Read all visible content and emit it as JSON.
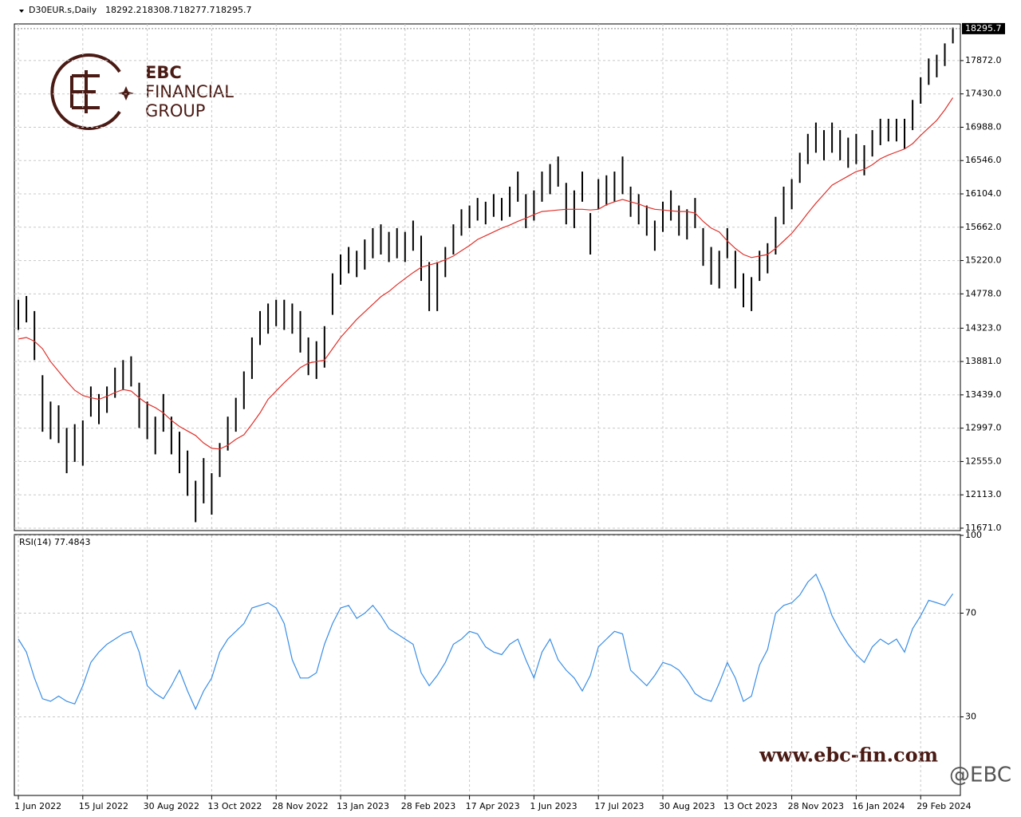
{
  "chart_data": [
    {
      "type": "ohlc",
      "title": "D30EUR.s,Daily",
      "ohlc_values": [
        18292.2,
        18308.7,
        18277.7,
        18295.7
      ],
      "last_price": 18295.7,
      "ylim": [
        11639,
        18358
      ],
      "yticks": [
        {
          "value": 11671,
          "label": "11671.0"
        },
        {
          "value": 12113,
          "label": "12113.0"
        },
        {
          "value": 12555,
          "label": "12555.0"
        },
        {
          "value": 12997,
          "label": "12997.0"
        },
        {
          "value": 13439,
          "label": "13439.0"
        },
        {
          "value": 13881,
          "label": "13881.0"
        },
        {
          "value": 14323,
          "label": "14323.0"
        },
        {
          "value": 14778,
          "label": "14778.0"
        },
        {
          "value": 15220,
          "label": "15220.0"
        },
        {
          "value": 15662,
          "label": "15662.0"
        },
        {
          "value": 16104,
          "label": "16104.0"
        },
        {
          "value": 16546,
          "label": "16546.0"
        },
        {
          "value": 16988,
          "label": "16988.0"
        },
        {
          "value": 17430,
          "label": "17430.0"
        },
        {
          "value": 17872,
          "label": "17872.0"
        }
      ],
      "grid": true,
      "color": "#000000",
      "high": [
        14700,
        14750,
        14550,
        13700,
        13350,
        13300,
        13000,
        13050,
        13100,
        13550,
        13450,
        13550,
        13800,
        13900,
        13950,
        13600,
        13350,
        13150,
        13450,
        13150,
        12950,
        12700,
        12300,
        12600,
        12400,
        12800,
        13150,
        13400,
        13750,
        14200,
        14550,
        14650,
        14700,
        14700,
        14650,
        14550,
        14200,
        14150,
        14350,
        15050,
        15300,
        15400,
        15350,
        15500,
        15650,
        15700,
        15600,
        15650,
        15600,
        15750,
        15550,
        15200,
        15200,
        15400,
        15700,
        15900,
        15950,
        16050,
        16000,
        16100,
        16050,
        16200,
        16400,
        16100,
        16150,
        16400,
        16500,
        16600,
        16250,
        16150,
        16400,
        15850,
        16300,
        16350,
        16400,
        16600,
        16200,
        16100,
        15950,
        15750,
        16000,
        16150,
        15950,
        15900,
        16050,
        15650,
        15400,
        15350,
        15650,
        15350,
        15050,
        15000,
        15350,
        15450,
        15800,
        16200,
        16300,
        16650,
        16900,
        17050,
        16950,
        17050,
        16950,
        16850,
        16900,
        16750,
        16950,
        17100,
        17100,
        17100,
        17100,
        17350,
        17650,
        17900,
        17950,
        18100,
        18309
      ],
      "low": [
        14300,
        14400,
        13900,
        12950,
        12850,
        12800,
        12400,
        12550,
        12500,
        13150,
        13050,
        13200,
        13400,
        13500,
        13550,
        13000,
        12850,
        12650,
        12950,
        12650,
        12400,
        12100,
        11750,
        12000,
        11850,
        12350,
        12700,
        12950,
        13250,
        13650,
        14100,
        14250,
        14350,
        14300,
        14250,
        14000,
        13700,
        13650,
        13800,
        14500,
        14900,
        15050,
        15000,
        15100,
        15250,
        15300,
        15200,
        15250,
        15200,
        15350,
        14950,
        14550,
        14550,
        15000,
        15300,
        15550,
        15650,
        15750,
        15700,
        15800,
        15750,
        15800,
        16000,
        15650,
        15750,
        16000,
        16100,
        16200,
        15700,
        15650,
        16000,
        15300,
        15900,
        15950,
        16000,
        16100,
        15800,
        15700,
        15550,
        15350,
        15600,
        15750,
        15550,
        15500,
        15650,
        15150,
        14900,
        14850,
        15250,
        14850,
        14600,
        14550,
        14950,
        15050,
        15300,
        15700,
        15900,
        16250,
        16500,
        16650,
        16550,
        16650,
        16550,
        16450,
        16500,
        16350,
        16600,
        16750,
        16800,
        16800,
        16700,
        16950,
        17300,
        17550,
        17650,
        17800,
        18100
      ],
      "series": [
        {
          "color": "#e0302a",
          "values": [
            14180,
            14200,
            14150,
            14050,
            13880,
            13750,
            13620,
            13500,
            13430,
            13400,
            13380,
            13420,
            13470,
            13510,
            13490,
            13400,
            13320,
            13270,
            13200,
            13100,
            13020,
            12960,
            12900,
            12800,
            12730,
            12720,
            12770,
            12850,
            12910,
            13050,
            13200,
            13380,
            13490,
            13600,
            13700,
            13800,
            13860,
            13880,
            13900,
            14050,
            14200,
            14320,
            14440,
            14540,
            14640,
            14740,
            14810,
            14900,
            14980,
            15060,
            15130,
            15160,
            15190,
            15230,
            15280,
            15350,
            15420,
            15500,
            15550,
            15600,
            15650,
            15690,
            15740,
            15780,
            15830,
            15870,
            15880,
            15890,
            15900,
            15900,
            15900,
            15890,
            15900,
            15960,
            16000,
            16030,
            16000,
            15970,
            15930,
            15900,
            15890,
            15880,
            15870,
            15870,
            15850,
            15740,
            15650,
            15600,
            15480,
            15380,
            15300,
            15260,
            15280,
            15300,
            15380,
            15480,
            15580,
            15710,
            15850,
            15980,
            16100,
            16220,
            16280,
            16340,
            16400,
            16430,
            16490,
            16570,
            16620,
            16660,
            16700,
            16770,
            16880,
            16980,
            17080,
            17220,
            17380
          ]
        }
      ]
    },
    {
      "type": "line",
      "title": "RSI(14)",
      "current_value": 77.4843,
      "ylim": [
        0,
        100
      ],
      "yticks": [
        100,
        70,
        30
      ],
      "grid": true,
      "categories": [
        "1 Jun 2022",
        null,
        null,
        null,
        null,
        null,
        null,
        null,
        "15 Jul 2022",
        null,
        null,
        null,
        null,
        null,
        null,
        null,
        "30 Aug 2022",
        null,
        null,
        null,
        null,
        null,
        null,
        null,
        "13 Oct 2022",
        null,
        null,
        null,
        null,
        null,
        null,
        null,
        "28 Nov 2022",
        null,
        null,
        null,
        null,
        null,
        null,
        null,
        "13 Jan 2023",
        null,
        null,
        null,
        null,
        null,
        null,
        null,
        "28 Feb 2023",
        null,
        null,
        null,
        null,
        null,
        null,
        null,
        "17 Apr 2023",
        null,
        null,
        null,
        null,
        null,
        null,
        null,
        "1 Jun 2023",
        null,
        null,
        null,
        null,
        null,
        null,
        null,
        "17 Jul 2023",
        null,
        null,
        null,
        null,
        null,
        null,
        null,
        "30 Aug 2023",
        null,
        null,
        null,
        null,
        null,
        null,
        null,
        "13 Oct 2023",
        null,
        null,
        null,
        null,
        null,
        null,
        null,
        "28 Nov 2023",
        null,
        null,
        null,
        null,
        null,
        null,
        null,
        "16 Jan 2024",
        null,
        null,
        null,
        null,
        null,
        null,
        null,
        "29 Feb 2024",
        null,
        null,
        null,
        null
      ],
      "series": [
        {
          "color": "#3a8ee6",
          "values": [
            60,
            55,
            45,
            37,
            36,
            38,
            36,
            35,
            42,
            51,
            55,
            58,
            60,
            62,
            63,
            55,
            42,
            39,
            37,
            42,
            48,
            40,
            33,
            40,
            45,
            55,
            60,
            63,
            66,
            72,
            73,
            74,
            72,
            66,
            52,
            45,
            45,
            47,
            58,
            66,
            72,
            73,
            68,
            70,
            73,
            69,
            64,
            62,
            60,
            58,
            47,
            42,
            46,
            51,
            58,
            60,
            63,
            62,
            57,
            55,
            54,
            58,
            60,
            52,
            45,
            55,
            60,
            52,
            48,
            45,
            40,
            46,
            57,
            60,
            63,
            62,
            48,
            45,
            42,
            46,
            51,
            50,
            48,
            44,
            39,
            37,
            36,
            43,
            51,
            45,
            36,
            38,
            50,
            56,
            70,
            73,
            74,
            77,
            82,
            85,
            78,
            69,
            63,
            58,
            54,
            51,
            57,
            60,
            58,
            60,
            55,
            64,
            69,
            75,
            74,
            73,
            77.48
          ]
        }
      ]
    }
  ],
  "branding": {
    "logo_line1": "EBC",
    "logo_line2": "FINANCIAL",
    "logo_line3": "GROUP",
    "website": "www.ebc-fin.com",
    "handle": "@EBC"
  }
}
